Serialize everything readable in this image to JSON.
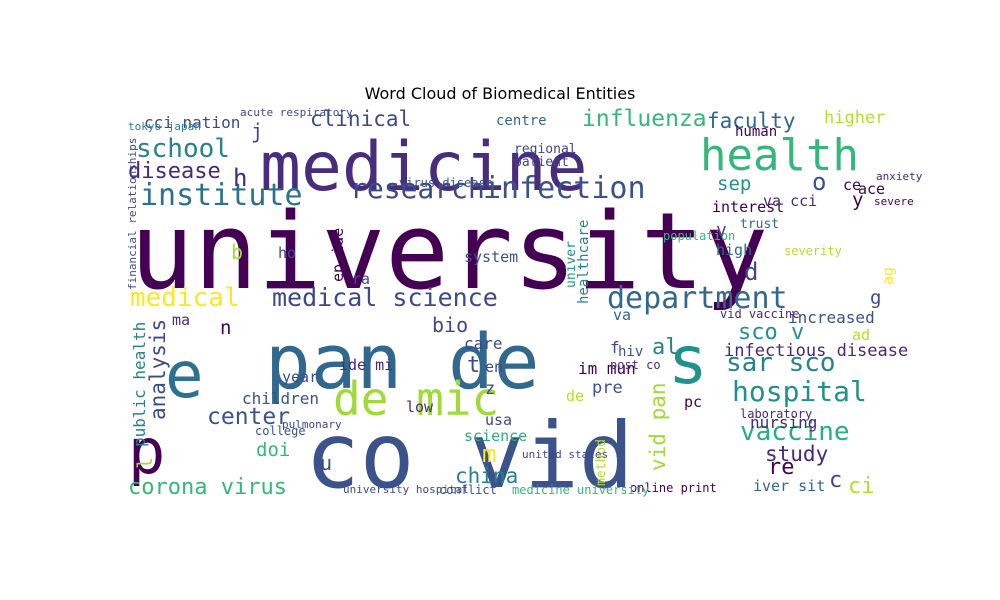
{
  "chart_data": {
    "type": "wordcloud",
    "title": "Word Cloud of Biomedical Entities",
    "palette": "viridis",
    "words": [
      {
        "text": "university",
        "weight": 100,
        "color": "#440154"
      },
      {
        "text": "co vid",
        "weight": 85,
        "color": "#3b528b"
      },
      {
        "text": "pan de",
        "weight": 70,
        "color": "#31688e"
      },
      {
        "text": "medicine",
        "weight": 62,
        "color": "#472d7b"
      },
      {
        "text": "s",
        "weight": 60,
        "color": "#21918c"
      },
      {
        "text": "e",
        "weight": 58,
        "color": "#2c728e"
      },
      {
        "text": "p",
        "weight": 56,
        "color": "#440154"
      },
      {
        "text": "de mic",
        "weight": 40,
        "color": "#a0da39"
      },
      {
        "text": "health",
        "weight": 38,
        "color": "#35b779"
      },
      {
        "text": "institute",
        "weight": 24,
        "color": "#2c728e"
      },
      {
        "text": "research",
        "weight": 22,
        "color": "#3e4989"
      },
      {
        "text": "infection",
        "weight": 24,
        "color": "#3b528b"
      },
      {
        "text": "department",
        "weight": 24,
        "color": "#31688e"
      },
      {
        "text": "medical science",
        "weight": 19,
        "color": "#3e4989"
      },
      {
        "text": "hospital",
        "weight": 22,
        "color": "#21918c"
      },
      {
        "text": "vaccine",
        "weight": 20,
        "color": "#29af7f"
      },
      {
        "text": "sar sco",
        "weight": 20,
        "color": "#26828e"
      },
      {
        "text": "school",
        "weight": 20,
        "color": "#26828e"
      },
      {
        "text": "medical",
        "weight": 20,
        "color": "#fde725"
      },
      {
        "text": "influenza",
        "weight": 17,
        "color": "#35b779"
      },
      {
        "text": "clinical",
        "weight": 15,
        "color": "#3e4989"
      },
      {
        "text": "disease",
        "weight": 16,
        "color": "#482878"
      },
      {
        "text": "faculty",
        "weight": 15,
        "color": "#31688e"
      },
      {
        "text": "corona virus",
        "weight": 16,
        "color": "#35b779"
      },
      {
        "text": "china",
        "weight": 15,
        "color": "#26828e"
      },
      {
        "text": "center",
        "weight": 17,
        "color": "#3b528b"
      },
      {
        "text": "analysis",
        "weight": 15,
        "color": "#3e4989"
      },
      {
        "text": "study",
        "weight": 15,
        "color": "#482878"
      },
      {
        "text": "sco v",
        "weight": 16,
        "color": "#21918c"
      },
      {
        "text": "vid pan",
        "weight": 15,
        "color": "#a0da39"
      },
      {
        "text": "infectious disease",
        "weight": 11,
        "color": "#482878"
      },
      {
        "text": "m",
        "weight": 18,
        "color": "#fde725"
      },
      {
        "text": "h",
        "weight": 18,
        "color": "#482878"
      },
      {
        "text": "o",
        "weight": 18,
        "color": "#3b528b"
      },
      {
        "text": "d",
        "weight": 18,
        "color": "#3e4989"
      },
      {
        "text": "doi",
        "weight": 13,
        "color": "#35b779"
      },
      {
        "text": "re",
        "weight": 16,
        "color": "#440154"
      },
      {
        "text": "ci",
        "weight": 16,
        "color": "#b5de2b"
      },
      {
        "text": "bio",
        "weight": 14,
        "color": "#3e4989"
      },
      {
        "text": "al",
        "weight": 16,
        "color": "#26828e"
      },
      {
        "text": "sep",
        "weight": 13,
        "color": "#21918c"
      },
      {
        "text": "higher",
        "weight": 11,
        "color": "#b5de2b"
      },
      {
        "text": "public health",
        "weight": 10,
        "color": "#26828e"
      },
      {
        "text": "cci nation",
        "weight": 10,
        "color": "#3e4989"
      },
      {
        "text": "children",
        "weight": 10,
        "color": "#3b528b"
      },
      {
        "text": "increased",
        "weight": 10,
        "color": "#3b528b"
      },
      {
        "text": "nursing",
        "weight": 10,
        "color": "#482878"
      },
      {
        "text": "care",
        "weight": 10,
        "color": "#3e4989"
      },
      {
        "text": "im mun",
        "weight": 10,
        "color": "#440154"
      },
      {
        "text": "pre",
        "weight": 11,
        "color": "#3b528b"
      },
      {
        "text": "system",
        "weight": 9,
        "color": "#3b528b"
      },
      {
        "text": "science",
        "weight": 9,
        "color": "#29af7f"
      },
      {
        "text": "ide mi",
        "weight": 9,
        "color": "#482878"
      },
      {
        "text": "ep ide",
        "weight": 9,
        "color": "#440154"
      },
      {
        "text": "interest",
        "weight": 9,
        "color": "#440154"
      },
      {
        "text": "year",
        "weight": 9,
        "color": "#3e4989"
      },
      {
        "text": "iver sit",
        "weight": 9,
        "color": "#31688e"
      },
      {
        "text": "healthcare",
        "weight": 8,
        "color": "#26828e"
      },
      {
        "text": "univer",
        "weight": 7,
        "color": "#21918c"
      },
      {
        "text": "centre",
        "weight": 8,
        "color": "#31688e"
      },
      {
        "text": "regional",
        "weight": 7,
        "color": "#3e4989"
      },
      {
        "text": "patient",
        "weight": 7,
        "color": "#3e4989"
      },
      {
        "text": "method",
        "weight": 7,
        "color": "#b5de2b"
      },
      {
        "text": "hiv",
        "weight": 8,
        "color": "#3b528b"
      },
      {
        "text": "high",
        "weight": 9,
        "color": "#31688e"
      },
      {
        "text": "trust",
        "weight": 7,
        "color": "#31688e"
      },
      {
        "text": "severity",
        "weight": 6,
        "color": "#b5de2b"
      },
      {
        "text": "population",
        "weight": 6,
        "color": "#35b779"
      },
      {
        "text": "human",
        "weight": 8,
        "color": "#440154"
      },
      {
        "text": "laboratory",
        "weight": 6,
        "color": "#482878"
      },
      {
        "text": "college",
        "weight": 6,
        "color": "#3b528b"
      },
      {
        "text": "conflict",
        "weight": 6,
        "color": "#3b528b"
      },
      {
        "text": "online print",
        "weight": 6,
        "color": "#440154"
      },
      {
        "text": "medicine university",
        "weight": 6,
        "color": "#35b779"
      },
      {
        "text": "vid vaccine",
        "weight": 6,
        "color": "#482878"
      },
      {
        "text": "post co",
        "weight": 6,
        "color": "#472d7b"
      },
      {
        "text": "virus disease",
        "weight": 6,
        "color": "#3b528b"
      },
      {
        "text": "acute respiratory",
        "weight": 5,
        "color": "#3e4989"
      },
      {
        "text": "tokyo japan",
        "weight": 5,
        "color": "#26828e"
      },
      {
        "text": "financial relationships",
        "weight": 5,
        "color": "#3e4989"
      },
      {
        "text": "university hospital",
        "weight": 5,
        "color": "#3e4989"
      },
      {
        "text": "united states",
        "weight": 5,
        "color": "#3e4989"
      },
      {
        "text": "pulmonary",
        "weight": 5,
        "color": "#3e4989"
      },
      {
        "text": "anxiety",
        "weight": 5,
        "color": "#482878"
      },
      {
        "text": "severe",
        "weight": 5,
        "color": "#440154"
      },
      {
        "text": "ace",
        "weight": 9,
        "color": "#440154"
      },
      {
        "text": "ce",
        "weight": 9,
        "color": "#440154"
      },
      {
        "text": "va cci",
        "weight": 9,
        "color": "#472d7b"
      },
      {
        "text": "pc",
        "weight": 9,
        "color": "#440154"
      },
      {
        "text": "usa",
        "weight": 9,
        "color": "#3e4989"
      },
      {
        "text": "low",
        "weight": 9,
        "color": "#472d7b"
      },
      {
        "text": "en",
        "weight": 9,
        "color": "#3e4989"
      },
      {
        "text": "ag",
        "weight": 9,
        "color": "#fde725"
      },
      {
        "text": "ma",
        "weight": 9,
        "color": "#472d7b"
      },
      {
        "text": "ra",
        "weight": 9,
        "color": "#3e4989"
      },
      {
        "text": "va",
        "weight": 9,
        "color": "#31688e"
      },
      {
        "text": "ad",
        "weight": 9,
        "color": "#b5de2b"
      },
      {
        "text": "ho",
        "weight": 9,
        "color": "#3e4989"
      },
      {
        "text": "de",
        "weight": 9,
        "color": "#b5de2b"
      },
      {
        "text": "n",
        "weight": 13,
        "color": "#440154"
      },
      {
        "text": "u",
        "weight": 14,
        "color": "#3e4989"
      },
      {
        "text": "t",
        "weight": 16,
        "color": "#3e4989"
      },
      {
        "text": "z",
        "weight": 11,
        "color": "#3e4989"
      },
      {
        "text": "f",
        "weight": 10,
        "color": "#3e4989"
      },
      {
        "text": "b",
        "weight": 14,
        "color": "#a0da39"
      },
      {
        "text": "j",
        "weight": 14,
        "color": "#3e4989"
      },
      {
        "text": "g",
        "weight": 13,
        "color": "#3e4989"
      },
      {
        "text": "v",
        "weight": 12,
        "color": "#3e4989"
      },
      {
        "text": "y",
        "weight": 13,
        "color": "#440154"
      },
      {
        "text": "l",
        "weight": 14,
        "color": "#a0da39"
      },
      {
        "text": "c",
        "weight": 16,
        "color": "#3e4989"
      }
    ]
  }
}
